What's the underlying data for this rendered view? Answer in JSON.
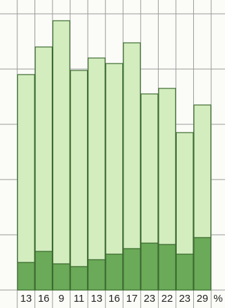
{
  "chart_data": {
    "type": "stacked-bar",
    "categories": [
      "13",
      "16",
      "9",
      "11",
      "13",
      "16",
      "17",
      "23",
      "22",
      "23",
      "29"
    ],
    "unit": "%",
    "series": [
      {
        "color": "#6aaa58",
        "values": [
          10,
          14,
          9.5,
          8.5,
          11,
          13,
          15,
          17,
          16.5,
          13,
          19
        ]
      },
      {
        "color": "#d3edbf",
        "values": [
          68,
          74,
          88,
          71,
          73,
          69,
          74.5,
          54,
          56.5,
          44,
          48
        ]
      }
    ],
    "ylim": [
      0,
      100
    ],
    "yticks": [
      0,
      20,
      40,
      60,
      80,
      100
    ],
    "grid": true
  }
}
